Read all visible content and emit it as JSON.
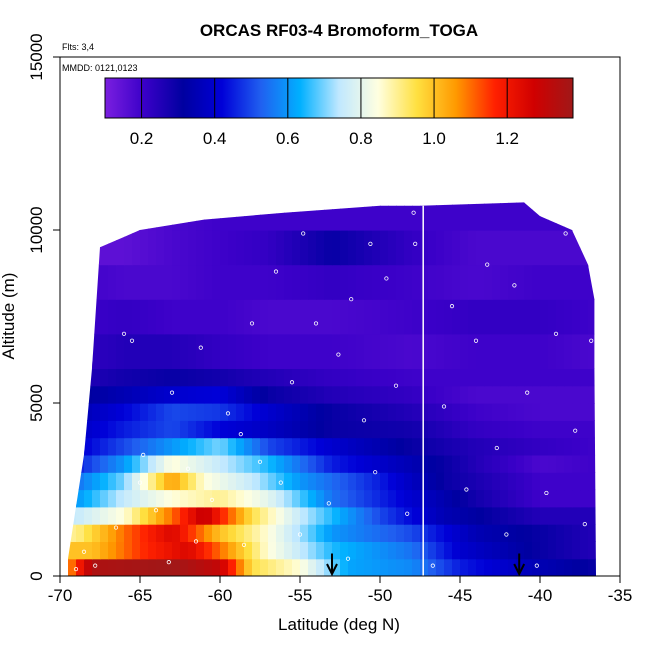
{
  "chart_data": {
    "type": "heatmap",
    "title": "ORCAS RF03-4 Bromoform_TOGA",
    "xlabel": "Latitude (deg N)",
    "ylabel": "Altitude (m)",
    "xlim": [
      -70,
      -35
    ],
    "ylim": [
      0,
      15000
    ],
    "x_ticks": [
      -70,
      -65,
      -60,
      -55,
      -50,
      -45,
      -40,
      -35
    ],
    "x_tick_labels": [
      "-70",
      "-65",
      "-60",
      "-55",
      "-50",
      "-45",
      "-40",
      "-35"
    ],
    "y_ticks": [
      0,
      5000,
      10000,
      15000
    ],
    "y_tick_labels": [
      "0",
      "5000",
      "10000",
      "15000"
    ],
    "flights_note": "Flts: 3,4",
    "date_note": "MMDD: 0121,0123",
    "colorbar": {
      "range": [
        0.1,
        1.38
      ],
      "ticks": [
        0.2,
        0.4,
        0.6,
        0.8,
        1.0,
        1.2
      ],
      "tick_labels": [
        "0.2",
        "0.4",
        "0.6",
        "0.8",
        "1.0",
        "1.2"
      ],
      "colors": [
        "#7B1FE0",
        "#3A00C8",
        "#0000A0",
        "#0000D8",
        "#2060F0",
        "#00B0FF",
        "#C0E8FF",
        "#FFFFE0",
        "#FFE040",
        "#FF9900",
        "#FF2000",
        "#D00000",
        "#A01818"
      ]
    },
    "separator_latitude": -47.3,
    "arrow_latitudes": [
      -53,
      -41.3
    ],
    "curtain": {
      "lat_min": -69.5,
      "lat_max": -36.5,
      "alt_top": [
        [
          -69.5,
          500
        ],
        [
          -68.5,
          3500
        ],
        [
          -68,
          6000
        ],
        [
          -67.5,
          9500
        ],
        [
          -65,
          10000
        ],
        [
          -61,
          10300
        ],
        [
          -56,
          10500
        ],
        [
          -50,
          10700
        ],
        [
          -47.5,
          10700
        ],
        [
          -41,
          10800
        ],
        [
          -40,
          10400
        ],
        [
          -38,
          10000
        ],
        [
          -37,
          9000
        ],
        [
          -36.6,
          8000
        ],
        [
          -36.6,
          6000
        ],
        [
          -36.5,
          0
        ]
      ]
    },
    "layers": [
      {
        "alt_range": [
          0,
          500
        ],
        "color_profile": [
          [
            -69.5,
            1.05
          ],
          [
            -68,
            1.35
          ],
          [
            -63,
            1.38
          ],
          [
            -60,
            1.3
          ],
          [
            -58,
            0.95
          ],
          [
            -55,
            0.85
          ],
          [
            -52,
            0.62
          ],
          [
            -48,
            0.58
          ],
          [
            -45,
            0.45
          ],
          [
            -40,
            0.35
          ],
          [
            -36.5,
            0.3
          ]
        ]
      },
      {
        "alt_range": [
          500,
          1000
        ],
        "color_profile": [
          [
            -69.5,
            1.0
          ],
          [
            -68,
            1.0
          ],
          [
            -65,
            1.15
          ],
          [
            -62,
            1.25
          ],
          [
            -60,
            1.1
          ],
          [
            -57,
            0.85
          ],
          [
            -53,
            0.65
          ],
          [
            -48,
            0.55
          ],
          [
            -45,
            0.4
          ],
          [
            -40,
            0.3
          ],
          [
            -36.5,
            0.25
          ]
        ]
      },
      {
        "alt_range": [
          1000,
          1500
        ],
        "color_profile": [
          [
            -69,
            0.9
          ],
          [
            -66,
            1.1
          ],
          [
            -63,
            1.25
          ],
          [
            -60,
            1.0
          ],
          [
            -57,
            0.85
          ],
          [
            -53,
            0.6
          ],
          [
            -48,
            0.5
          ],
          [
            -44,
            0.35
          ],
          [
            -40,
            0.3
          ],
          [
            -36.5,
            0.25
          ]
        ]
      },
      {
        "alt_range": [
          1500,
          2000
        ],
        "color_profile": [
          [
            -69,
            0.75
          ],
          [
            -66,
            0.85
          ],
          [
            -63,
            1.1
          ],
          [
            -61,
            1.3
          ],
          [
            -58,
            0.95
          ],
          [
            -55,
            0.75
          ],
          [
            -50,
            0.5
          ],
          [
            -46,
            0.35
          ],
          [
            -40,
            0.25
          ],
          [
            -36.5,
            0.25
          ]
        ]
      },
      {
        "alt_range": [
          2000,
          2500
        ],
        "color_profile": [
          [
            -69,
            0.6
          ],
          [
            -66,
            0.75
          ],
          [
            -63,
            0.85
          ],
          [
            -60,
            0.9
          ],
          [
            -57,
            0.8
          ],
          [
            -53,
            0.55
          ],
          [
            -48,
            0.4
          ],
          [
            -44,
            0.28
          ],
          [
            -40,
            0.2
          ],
          [
            -36.5,
            0.2
          ]
        ]
      },
      {
        "alt_range": [
          2500,
          3000
        ],
        "color_profile": [
          [
            -69,
            0.55
          ],
          [
            -66,
            0.7
          ],
          [
            -63,
            1.05
          ],
          [
            -61,
            0.85
          ],
          [
            -58,
            0.75
          ],
          [
            -55,
            0.6
          ],
          [
            -50,
            0.45
          ],
          [
            -46,
            0.3
          ],
          [
            -40,
            0.2
          ],
          [
            -36.5,
            0.2
          ]
        ]
      },
      {
        "alt_range": [
          3000,
          3500
        ],
        "color_profile": [
          [
            -69,
            0.45
          ],
          [
            -66,
            0.6
          ],
          [
            -63,
            0.85
          ],
          [
            -60,
            0.75
          ],
          [
            -57,
            0.65
          ],
          [
            -53,
            0.45
          ],
          [
            -48,
            0.35
          ],
          [
            -44,
            0.25
          ],
          [
            -40,
            0.18
          ],
          [
            -36.5,
            0.2
          ]
        ]
      },
      {
        "alt_range": [
          3500,
          4000
        ],
        "color_profile": [
          [
            -69,
            0.4
          ],
          [
            -66,
            0.5
          ],
          [
            -63,
            0.6
          ],
          [
            -60,
            0.7
          ],
          [
            -57,
            0.5
          ],
          [
            -53,
            0.4
          ],
          [
            -48,
            0.3
          ],
          [
            -44,
            0.25
          ],
          [
            -40,
            0.22
          ],
          [
            -36.5,
            0.2
          ]
        ]
      },
      {
        "alt_range": [
          4000,
          4500
        ],
        "color_profile": [
          [
            -69,
            0.38
          ],
          [
            -66,
            0.45
          ],
          [
            -63,
            0.5
          ],
          [
            -60,
            0.42
          ],
          [
            -57,
            0.38
          ],
          [
            -53,
            0.3
          ],
          [
            -48,
            0.28
          ],
          [
            -44,
            0.22
          ],
          [
            -40,
            0.2
          ],
          [
            -36.5,
            0.2
          ]
        ]
      },
      {
        "alt_range": [
          4500,
          5000
        ],
        "color_profile": [
          [
            -69,
            0.35
          ],
          [
            -66,
            0.42
          ],
          [
            -63,
            0.5
          ],
          [
            -60,
            0.48
          ],
          [
            -57,
            0.4
          ],
          [
            -53,
            0.3
          ],
          [
            -48,
            0.25
          ],
          [
            -44,
            0.2
          ],
          [
            -40,
            0.18
          ],
          [
            -36.5,
            0.18
          ]
        ]
      },
      {
        "alt_range": [
          5000,
          5500
        ],
        "color_profile": [
          [
            -69,
            0.3
          ],
          [
            -66,
            0.35
          ],
          [
            -63,
            0.4
          ],
          [
            -60,
            0.42
          ],
          [
            -57,
            0.3
          ],
          [
            -53,
            0.25
          ],
          [
            -48,
            0.22
          ],
          [
            -44,
            0.18
          ],
          [
            -40,
            0.18
          ],
          [
            -36.5,
            0.18
          ]
        ]
      },
      {
        "alt_range": [
          5500,
          6000
        ],
        "color_profile": [
          [
            -69,
            0.25
          ],
          [
            -66,
            0.28
          ],
          [
            -63,
            0.3
          ],
          [
            -60,
            0.28
          ],
          [
            -57,
            0.25
          ],
          [
            -53,
            0.22
          ],
          [
            -48,
            0.2
          ],
          [
            -44,
            0.2
          ],
          [
            -40,
            0.2
          ],
          [
            -36.5,
            0.2
          ]
        ]
      },
      {
        "alt_range": [
          6000,
          7000
        ],
        "color_profile": [
          [
            -69,
            0.22
          ],
          [
            -66,
            0.25
          ],
          [
            -63,
            0.25
          ],
          [
            -60,
            0.22
          ],
          [
            -57,
            0.2
          ],
          [
            -53,
            0.2
          ],
          [
            -48,
            0.18
          ],
          [
            -44,
            0.2
          ],
          [
            -40,
            0.2
          ],
          [
            -36.5,
            0.18
          ]
        ]
      },
      {
        "alt_range": [
          7000,
          8000
        ],
        "color_profile": [
          [
            -69,
            0.2
          ],
          [
            -66,
            0.22
          ],
          [
            -63,
            0.2
          ],
          [
            -60,
            0.2
          ],
          [
            -57,
            0.18
          ],
          [
            -53,
            0.18
          ],
          [
            -48,
            0.2
          ],
          [
            -44,
            0.22
          ],
          [
            -40,
            0.22
          ],
          [
            -36.5,
            0.2
          ]
        ]
      },
      {
        "alt_range": [
          8000,
          9000
        ],
        "color_profile": [
          [
            -69,
            0.2
          ],
          [
            -66,
            0.18
          ],
          [
            -63,
            0.18
          ],
          [
            -60,
            0.2
          ],
          [
            -57,
            0.2
          ],
          [
            -53,
            0.22
          ],
          [
            -48,
            0.2
          ],
          [
            -44,
            0.18
          ],
          [
            -40,
            0.2
          ],
          [
            -36.5,
            0.2
          ]
        ]
      },
      {
        "alt_range": [
          9000,
          10000
        ],
        "color_profile": [
          [
            -69,
            0.15
          ],
          [
            -66,
            0.15
          ],
          [
            -63,
            0.18
          ],
          [
            -60,
            0.2
          ],
          [
            -57,
            0.22
          ],
          [
            -53,
            0.3
          ],
          [
            -48,
            0.22
          ],
          [
            -44,
            0.18
          ],
          [
            -40,
            0.18
          ],
          [
            -36.5,
            0.18
          ]
        ]
      },
      {
        "alt_range": [
          10000,
          11000
        ],
        "color_profile": [
          [
            -69,
            0.15
          ],
          [
            -66,
            0.15
          ],
          [
            -63,
            0.18
          ],
          [
            -60,
            0.2
          ],
          [
            -57,
            0.2
          ],
          [
            -53,
            0.2
          ],
          [
            -48,
            0.2
          ],
          [
            -44,
            0.2
          ],
          [
            -40,
            0.2
          ],
          [
            -36.5,
            0.2
          ]
        ]
      }
    ],
    "sample_points": [
      [
        -69,
        200
      ],
      [
        -68.5,
        700
      ],
      [
        -67.8,
        300
      ],
      [
        -66.5,
        1400
      ],
      [
        -65,
        2700
      ],
      [
        -64,
        1900
      ],
      [
        -63.2,
        400
      ],
      [
        -62,
        3100
      ],
      [
        -61.5,
        1000
      ],
      [
        -60.5,
        2200
      ],
      [
        -59.5,
        4700
      ],
      [
        -58.7,
        4100
      ],
      [
        -57.5,
        3300
      ],
      [
        -56.2,
        2700
      ],
      [
        -55.5,
        5600
      ],
      [
        -54.8,
        9900
      ],
      [
        -54,
        7300
      ],
      [
        -53.2,
        2100
      ],
      [
        -52.6,
        6400
      ],
      [
        -51.8,
        8000
      ],
      [
        -51,
        4500
      ],
      [
        -50.3,
        3000
      ],
      [
        -49.6,
        8600
      ],
      [
        -49,
        5500
      ],
      [
        -48.3,
        1800
      ],
      [
        -47.8,
        9600
      ],
      [
        -46.7,
        300
      ],
      [
        -46,
        4900
      ],
      [
        -45.5,
        7800
      ],
      [
        -44.6,
        2500
      ],
      [
        -44,
        6800
      ],
      [
        -43.3,
        9000
      ],
      [
        -42.7,
        3700
      ],
      [
        -42.1,
        1200
      ],
      [
        -41.6,
        8400
      ],
      [
        -40.8,
        5300
      ],
      [
        -40.2,
        300
      ],
      [
        -39.6,
        2400
      ],
      [
        -39,
        7000
      ],
      [
        -38.4,
        9900
      ],
      [
        -37.8,
        4200
      ],
      [
        -37.2,
        1500
      ],
      [
        -36.8,
        6800
      ],
      [
        -66,
        7000
      ],
      [
        -65.5,
        6800
      ],
      [
        -63,
        5300
      ],
      [
        -61.2,
        6600
      ],
      [
        -58,
        7300
      ],
      [
        -56.5,
        8800
      ],
      [
        -50.6,
        9600
      ],
      [
        -47.9,
        10500
      ],
      [
        -52,
        500
      ],
      [
        -55,
        1200
      ],
      [
        -58.5,
        900
      ],
      [
        -64.8,
        3500
      ]
    ]
  }
}
